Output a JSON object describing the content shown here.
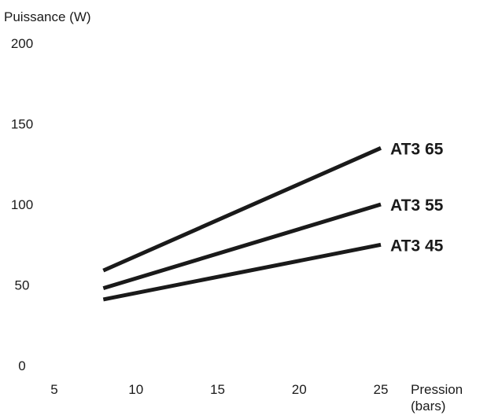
{
  "chart_data": {
    "type": "line",
    "title": "",
    "ylabel": "Puissance  (W)",
    "xlabel_lines": [
      "Pression",
      "(bars)"
    ],
    "xlim": [
      5,
      25
    ],
    "ylim": [
      0,
      200
    ],
    "x_ticks": [
      5,
      10,
      15,
      20,
      25
    ],
    "y_ticks": [
      0,
      50,
      100,
      150,
      200
    ],
    "grid": false,
    "legend": "none",
    "line_color": "#1a1a1a",
    "series": [
      {
        "name": "AT3 65",
        "x": [
          8,
          25
        ],
        "y": [
          59,
          135
        ]
      },
      {
        "name": "AT3 55",
        "x": [
          8,
          25
        ],
        "y": [
          48,
          100
        ]
      },
      {
        "name": "AT3 45",
        "x": [
          8,
          25
        ],
        "y": [
          41,
          75
        ]
      }
    ]
  }
}
